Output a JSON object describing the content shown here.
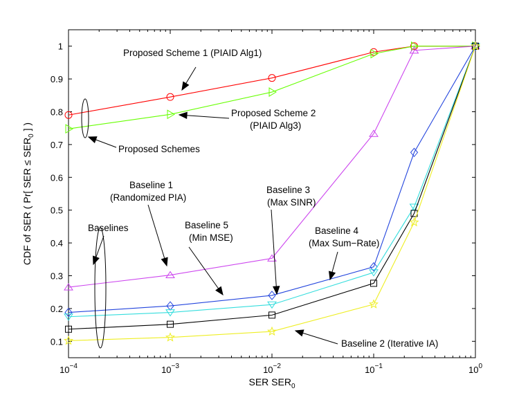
{
  "chart_data": {
    "type": "line",
    "xscale": "log",
    "x": [
      0.0001,
      0.001,
      0.01,
      0.1,
      0.25,
      1
    ],
    "xlim": [
      0.0001,
      1
    ],
    "ylim": [
      0.05,
      1.05
    ],
    "xticks": [
      {
        "value": 0.0001,
        "base": "10",
        "exp": "−4"
      },
      {
        "value": 0.001,
        "base": "10",
        "exp": "−3"
      },
      {
        "value": 0.01,
        "base": "10",
        "exp": "−2"
      },
      {
        "value": 0.1,
        "base": "10",
        "exp": "−1"
      },
      {
        "value": 1,
        "base": "10",
        "exp": "0"
      }
    ],
    "yticks": [
      0.1,
      0.2,
      0.3,
      0.4,
      0.5,
      0.6,
      0.7,
      0.8,
      0.9,
      1
    ],
    "xlabel": {
      "main": "SER SER",
      "sub": "0"
    },
    "ylabel": {
      "pre": "CDF of SER ( Pr[ SER ≤ SER",
      "sub": "0",
      "post": " ] )"
    },
    "series": [
      {
        "name": "Proposed Scheme 1 (PIAID Alg1)",
        "color": "#ff0000",
        "marker": "circle",
        "values": [
          0.79,
          0.845,
          0.903,
          0.982,
          1.0,
          1.0
        ]
      },
      {
        "name": "Proposed Scheme 2 (PIAID Alg3)",
        "color": "#66ff00",
        "marker": "triangle-right",
        "values": [
          0.748,
          0.792,
          0.86,
          0.977,
          1.0,
          1.0
        ]
      },
      {
        "name": "Baseline 1 (Randomized PIA)",
        "color": "#cc44ee",
        "marker": "triangle-up",
        "values": [
          0.265,
          0.302,
          0.353,
          0.733,
          0.987,
          1.0
        ]
      },
      {
        "name": "Baseline 3 (Max SINR)",
        "color": "#2244dd",
        "marker": "diamond",
        "values": [
          0.188,
          0.208,
          0.24,
          0.327,
          0.676,
          1.0
        ]
      },
      {
        "name": "Baseline 5 (Min MSE)",
        "color": "#33dddd",
        "marker": "triangle-down",
        "values": [
          0.175,
          0.188,
          0.212,
          0.31,
          0.51,
          1.0
        ]
      },
      {
        "name": "Baseline 4 (Max Sum-Rate)",
        "color": "#000000",
        "marker": "square",
        "values": [
          0.137,
          0.152,
          0.18,
          0.277,
          0.49,
          1.0
        ]
      },
      {
        "name": "Baseline 2 (Iterative IA)",
        "color": "#eeee22",
        "marker": "star",
        "values": [
          0.102,
          0.112,
          0.13,
          0.213,
          0.463,
          1.0
        ]
      }
    ],
    "annotations": {
      "proposed1": {
        "lines": [
          "Proposed Scheme 1 (PIAID Alg1)"
        ]
      },
      "proposed2": {
        "lines": [
          "Proposed Scheme 2",
          "(PIAID Alg3)"
        ]
      },
      "proposed_schemes": {
        "lines": [
          "Proposed Schemes"
        ]
      },
      "baseline1": {
        "lines": [
          "Baseline 1",
          "(Randomized PIA)"
        ]
      },
      "baselines": {
        "lines": [
          "Baselines"
        ]
      },
      "baseline5": {
        "lines": [
          "Baseline 5",
          "(Min MSE)"
        ]
      },
      "baseline3": {
        "lines": [
          "Baseline 3",
          "(Max SINR)"
        ]
      },
      "baseline4": {
        "lines": [
          "Baseline 4",
          "(Max Sum−Rate)"
        ]
      },
      "baseline2": {
        "lines": [
          "Baseline 2 (Iterative IA)"
        ]
      }
    }
  }
}
